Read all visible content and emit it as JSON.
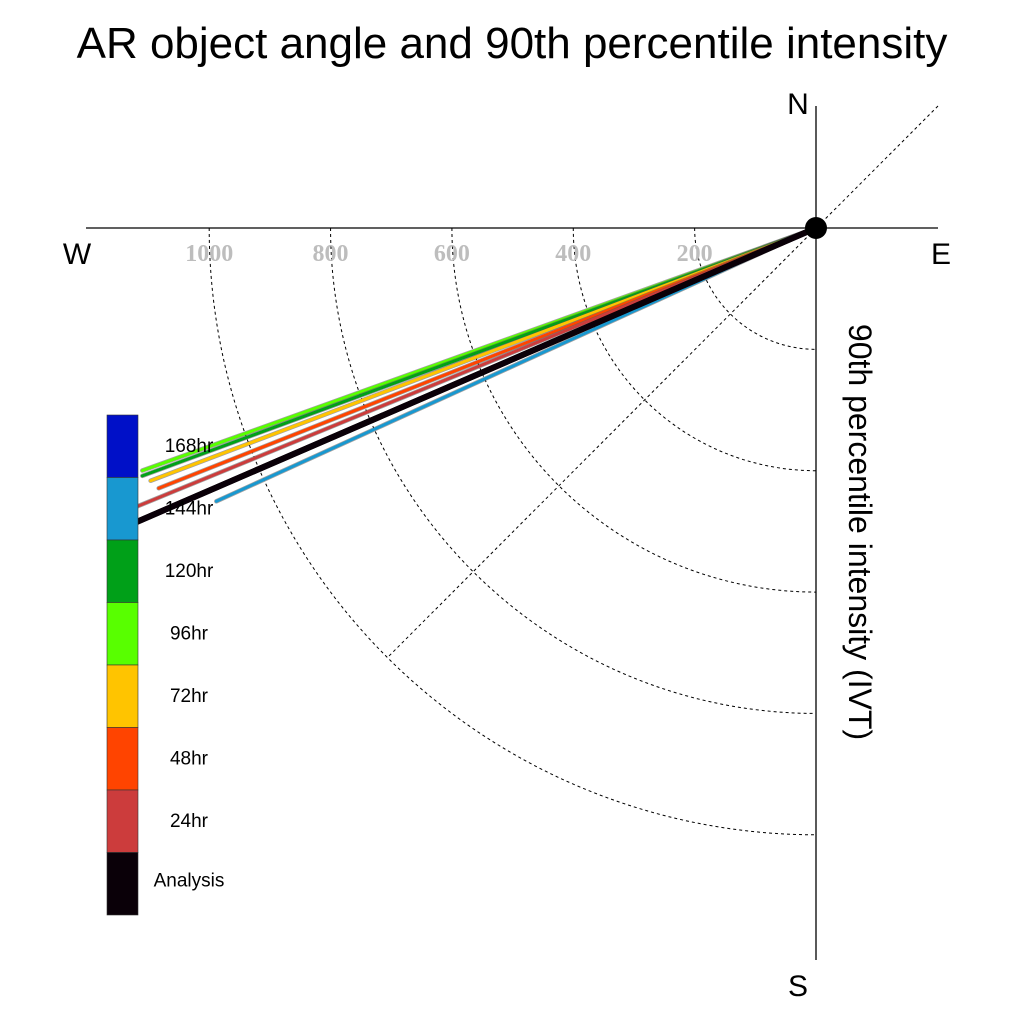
{
  "chart_data": {
    "type": "polar-line",
    "title": "AR object angle and 90th percentile intensity",
    "radial_label": "90th percentile intensity (IVT)",
    "compass": {
      "north": "N",
      "south": "S",
      "east": "E",
      "west": "W"
    },
    "radial_ticks": [
      200,
      400,
      600,
      800,
      1000
    ],
    "radial_max": 1200,
    "angle_reference": "degrees clockwise from W toward N",
    "legend": [
      {
        "label": "168hr",
        "color": "#0010c8"
      },
      {
        "label": "144hr",
        "color": "#1898d0"
      },
      {
        "label": "120hr",
        "color": "#00a018"
      },
      {
        "label": "96hr",
        "color": "#58ff00"
      },
      {
        "label": "72hr",
        "color": "#ffc400"
      },
      {
        "label": "48hr",
        "color": "#ff4400"
      },
      {
        "label": "24hr",
        "color": "#cc3c3c"
      },
      {
        "label": "Analysis",
        "color": "#0a0008"
      }
    ],
    "series": [
      {
        "name": "144hr",
        "angle": 24.5,
        "intensity": 1086,
        "color": "#1898d0"
      },
      {
        "name": "96hr",
        "angle": 19.8,
        "intensity": 1180,
        "color": "#58ff00"
      },
      {
        "name": "120hr",
        "angle": 20.2,
        "intensity": 1183,
        "color": "#00a018"
      },
      {
        "name": "72hr",
        "angle": 20.8,
        "intensity": 1173,
        "color": "#ffc400"
      },
      {
        "name": "48hr",
        "angle": 21.6,
        "intensity": 1165,
        "color": "#ff4400"
      },
      {
        "name": "24hr",
        "angle": 22.3,
        "intensity": 1224,
        "color": "#cc3c3c"
      },
      {
        "name": "Analysis",
        "angle": 23.4,
        "intensity": 1238,
        "color": "#0a0008"
      }
    ]
  }
}
